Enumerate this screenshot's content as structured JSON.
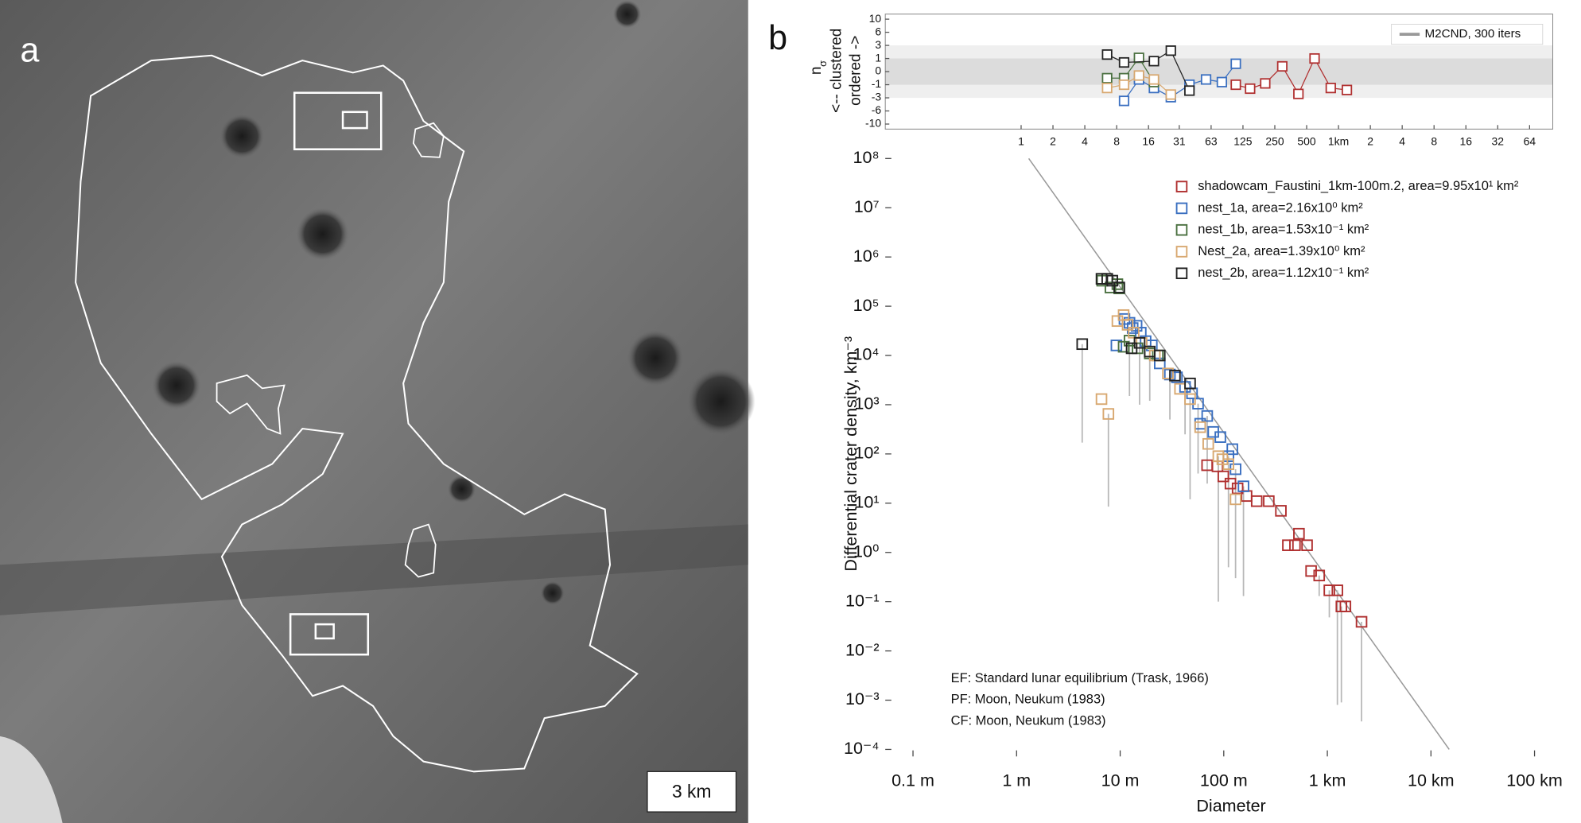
{
  "panel_a": {
    "label": "a",
    "scale_bar": "3 km"
  },
  "panel_b_label": "b",
  "chart_data": [
    {
      "type": "line",
      "ylabel": {
        "symbol": "n",
        "subscript": "σ",
        "lines": [
          "<-- clustered",
          "ordered ->"
        ]
      },
      "legend_label": "M2CND, 300 iters",
      "legend_color": "#999999",
      "xscale": "log",
      "xlim": [
        0.052,
        106000
      ],
      "ylim": [
        -10,
        10
      ],
      "xticks": [
        1,
        2,
        4,
        8,
        16,
        {
          "value": 31.25,
          "label": "31"
        },
        {
          "value": 62.5,
          "label": "63"
        },
        125,
        250,
        500,
        {
          "value": 1000,
          "label": "1km"
        },
        {
          "value": 2000,
          "label": "2"
        },
        {
          "value": 4000,
          "label": "4"
        },
        {
          "value": 8000,
          "label": "8"
        },
        {
          "value": 16000,
          "label": "16"
        },
        {
          "value": 32000,
          "label": "32"
        },
        {
          "value": 64000,
          "label": "64"
        }
      ],
      "yticks": [
        10,
        6,
        3,
        1,
        0,
        -1,
        -3,
        -6,
        -10
      ],
      "shade_ranges": [
        {
          "range": [
            -3,
            3
          ],
          "color": "#efefef"
        },
        {
          "range": [
            -1,
            1
          ],
          "color": "#dcdcdc"
        }
      ],
      "series": [
        {
          "color": "#b03030",
          "x": [
            107,
            146,
            203,
            294,
            418,
            594,
            845,
            1200
          ],
          "values": [
            -1,
            -1.6,
            -0.9,
            0.4,
            -2.4,
            1,
            -1.5,
            -1.8
          ]
        },
        {
          "color": "#3a6fc0",
          "x": [
            9.4,
            13,
            18,
            26,
            39,
            56,
            79,
            107
          ],
          "values": [
            -3.7,
            -0.6,
            -1.5,
            -2.9,
            -1,
            -0.6,
            -0.8,
            0.6
          ]
        },
        {
          "color": "#4a7040",
          "x": [
            6.5,
            9.4,
            13,
            18
          ],
          "values": [
            -0.5,
            -0.5,
            1.1,
            -0.8
          ]
        },
        {
          "color": "#d8a870",
          "x": [
            6.5,
            9.4,
            13,
            18,
            26
          ],
          "values": [
            -1.5,
            -1,
            -0.3,
            -0.6,
            -2.5
          ]
        },
        {
          "color": "#222222",
          "x": [
            6.5,
            9.4,
            18,
            26,
            39
          ],
          "values": [
            1.6,
            0.7,
            0.8,
            2.2,
            -1.9
          ]
        }
      ]
    },
    {
      "type": "scatter",
      "xlabel": "Diameter",
      "ylabel": "Differential crater density, km⁻³",
      "xscale": "log",
      "yscale": "log",
      "xlim": [
        0.054,
        150000
      ],
      "ylim": [
        7.2e-05,
        140000000.0
      ],
      "xticks": [
        {
          "value": 0.1,
          "label": "0.1 m"
        },
        {
          "value": 1,
          "label": "1 m"
        },
        {
          "value": 10,
          "label": "10 m"
        },
        {
          "value": 100,
          "label": "100 m"
        },
        {
          "value": 1000,
          "label": "1 km"
        },
        {
          "value": 10000,
          "label": "10 km"
        },
        {
          "value": 100000,
          "label": "100 km"
        }
      ],
      "yticks": [
        {
          "value": 100000000.0,
          "label": "10⁸"
        },
        {
          "value": 10000000.0,
          "label": "10⁷"
        },
        {
          "value": 1000000.0,
          "label": "10⁶"
        },
        {
          "value": 100000.0,
          "label": "10⁵"
        },
        {
          "value": 10000.0,
          "label": "10⁴"
        },
        {
          "value": 1000.0,
          "label": "10³"
        },
        {
          "value": 100,
          "label": "10²"
        },
        {
          "value": 10,
          "label": "10¹"
        },
        {
          "value": 1,
          "label": "10⁰"
        },
        {
          "value": 0.1,
          "label": "10⁻¹"
        },
        {
          "value": 0.01,
          "label": "10⁻²"
        },
        {
          "value": 0.001,
          "label": "10⁻³"
        },
        {
          "value": 0.0001,
          "label": "10⁻⁴"
        }
      ],
      "error_color": "#b8b8b8",
      "equilibrium_line": {
        "color": "#999999",
        "x": [
          1.31,
          15000
        ],
        "values": [
          100000000.0,
          0.0001
        ]
      },
      "annotations": [
        "EF: Standard lunar equilibrium (Trask, 1966)",
        "PF: Moon, Neukum (1983)",
        "CF: Moon, Neukum (1983)"
      ],
      "series": [
        {
          "name": "shadowcam_Faustini_1km-100m.2, area=9.95x10¹ km²",
          "color": "#b03030",
          "x": [
            69,
            87,
            99,
            116,
            136,
            166,
            208,
            272,
            356,
            416,
            487,
            532,
            637,
            697,
            834,
            1045,
            1250,
            1366,
            1494,
            2138
          ],
          "values": [
            59,
            56,
            35,
            25,
            20,
            14,
            11,
            11,
            7.0,
            1.4,
            1.4,
            2.4,
            1.4,
            0.42,
            0.34,
            0.17,
            0.17,
            0.08,
            0.08,
            0.039
          ],
          "err_low": [
            null,
            null,
            null,
            null,
            null,
            null,
            null,
            null,
            null,
            null,
            null,
            null,
            null,
            null,
            0.13,
            0.048,
            0.0008,
            0.0009,
            null,
            0.00037
          ]
        },
        {
          "name": "nest_1a, area=2.16x10⁰ km²",
          "color": "#3a6fc0",
          "x": [
            9.2,
            11,
            12.3,
            13.2,
            14.4,
            15.8,
            17.6,
            20.2,
            24.1,
            30.2,
            35.3,
            42.3,
            49.4,
            56.5,
            59.2,
            69.2,
            79.2,
            92.7,
            111,
            121,
            130,
            155
          ],
          "values": [
            16000,
            55000,
            46000,
            36000,
            40000,
            29000,
            19500,
            16000,
            6900,
            4100,
            3600,
            2300,
            1700,
            1050,
            410,
            590,
            280,
            220,
            90,
            125,
            49,
            22
          ],
          "err_low": [
            null,
            null,
            null,
            null,
            null,
            null,
            null,
            null,
            null,
            500,
            null,
            250,
            null,
            40,
            null,
            25,
            null,
            null,
            0.5,
            null,
            0.3,
            0.13
          ]
        },
        {
          "name": "nest_1b, area=1.53x10⁻¹ km²",
          "color": "#4a7040",
          "x": [
            6.7,
            8.05,
            9.4,
            9.8,
            10.8,
            12.3,
            14.7,
            19.3,
            23.1
          ],
          "values": [
            330000,
            240000,
            280000,
            230000,
            15000,
            20000,
            14000,
            11000,
            10000
          ],
          "err_low": [
            null,
            null,
            null,
            null,
            null,
            1500,
            null,
            1200,
            null
          ]
        },
        {
          "name": "Nest_2a, area=1.39x10⁰ km²",
          "color": "#d8a870",
          "x": [
            6.6,
            7.7,
            9.4,
            10.8,
            11.8,
            13.5,
            16.1,
            21.6,
            28.9,
            37.8,
            47.3,
            59.2,
            70.8,
            88.6,
            96.9,
            111,
            130
          ],
          "values": [
            1300,
            650,
            50000,
            66000,
            42000,
            29000,
            18000,
            10000,
            4300,
            2100,
            1300,
            350,
            160,
            90,
            78,
            62,
            12
          ],
          "err_low": [
            null,
            8.5,
            null,
            null,
            null,
            null,
            null,
            null,
            null,
            null,
            12,
            null,
            null,
            0.1,
            null,
            null,
            null
          ]
        },
        {
          "name": "nest_2b, area=1.12x10⁻¹ km²",
          "color": "#222222",
          "x": [
            4.3,
            6.6,
            7.5,
            8.4,
            9.8,
            12.9,
            15.4,
            19.3,
            24.1,
            33.8,
            47.3
          ],
          "values": [
            17000,
            360000,
            360000,
            330000,
            240000,
            14000,
            18000,
            12000,
            10000,
            3900,
            2700
          ],
          "err_low": [
            170,
            null,
            null,
            null,
            null,
            null,
            1000,
            null,
            null,
            null,
            null
          ]
        }
      ]
    }
  ]
}
